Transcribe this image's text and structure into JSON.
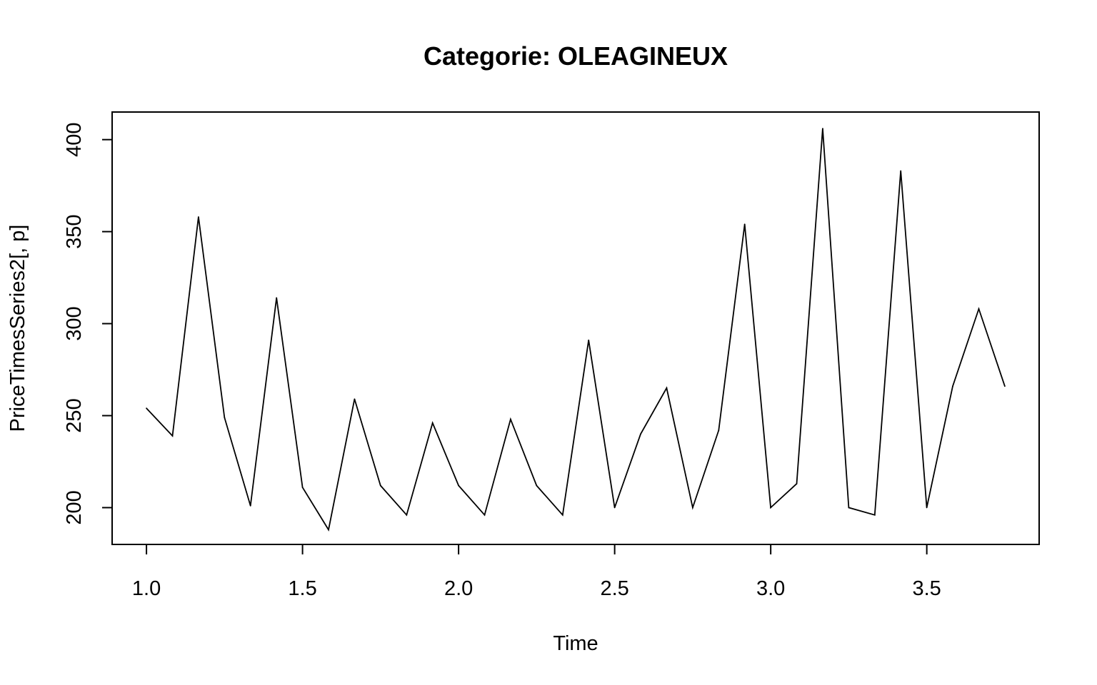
{
  "chart_data": {
    "type": "line",
    "title": "Categorie: OLEAGINEUX",
    "xlabel": "Time",
    "ylabel": "PriceTimesSeries2[, p]",
    "xlim": [
      0.89,
      3.86
    ],
    "ylim": [
      180,
      415
    ],
    "x_ticks": [
      1.0,
      1.5,
      2.0,
      2.5,
      3.0,
      3.5
    ],
    "x_tick_labels": [
      "1.0",
      "1.5",
      "2.0",
      "2.5",
      "3.0",
      "3.5"
    ],
    "y_ticks": [
      200,
      250,
      300,
      350,
      400
    ],
    "y_tick_labels": [
      "200",
      "250",
      "300",
      "350",
      "400"
    ],
    "x_start": 1.0,
    "x_step": 0.08333,
    "series": [
      {
        "name": "OLEAGINEUX",
        "color": "#000000",
        "values": [
          254,
          239,
          358,
          249,
          201,
          314,
          211,
          188,
          259,
          212,
          196,
          246,
          212,
          196,
          248,
          212,
          196,
          291,
          200,
          240,
          265,
          200,
          242,
          354,
          200,
          213,
          406,
          200,
          196,
          383,
          200,
          266,
          308,
          266
        ]
      }
    ]
  }
}
